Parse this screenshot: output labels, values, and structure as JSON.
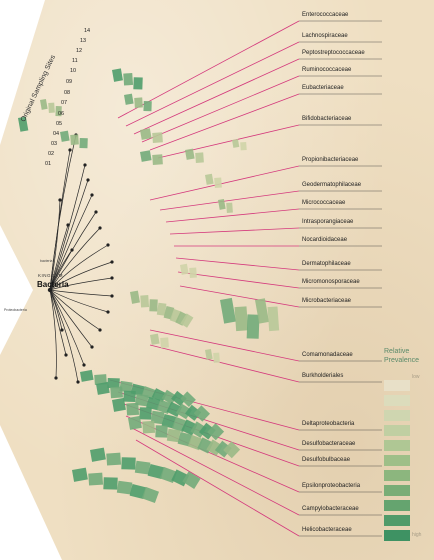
{
  "diagram": {
    "kingdom_label": "KINGDOM",
    "kingdom_name": "Bacteria",
    "sampling_axis_title": "Original Sampling Sites",
    "sampling_sites": [
      "14",
      "13",
      "12",
      "11",
      "10",
      "09",
      "08",
      "07",
      "06",
      "05",
      "04",
      "03",
      "02",
      "01"
    ],
    "families": [
      "Enterococcaceae",
      "Lachnospiraceae",
      "Peptostreptococcaceae",
      "Ruminococcaceae",
      "Eubacteriaceae",
      "Bifidobacteriaceae",
      "Propionibacteriaceae",
      "Geodermatophilaceae",
      "Micrococcaceae",
      "Intrasporangiaceae",
      "Nocardioidaceae",
      "Dermatophilaceae",
      "Micromonosporaceae",
      "Microbacteriaceae",
      "Comamonadaceae",
      "Burkholderiales",
      "Deltaproteobacteria",
      "Desulfobacteraceae",
      "Desulfobulbaceae",
      "Epsilonproteobacteria",
      "Campylobacteraceae",
      "Helicobacteraceae"
    ],
    "tiny_branch_labels": [
      "Proteobacteria",
      "bacteria"
    ],
    "legend": {
      "title_line1": "Relative",
      "title_line2": "Prevalence",
      "low_label": "low",
      "high_label": "high",
      "colors": [
        "#e8e0c8",
        "#dcdcbc",
        "#cfd6b0",
        "#c0cfa2",
        "#afc794",
        "#9ebf88",
        "#8cb67e",
        "#79ad76",
        "#65a46f",
        "#509b69",
        "#3e9263"
      ]
    },
    "colors": {
      "connector_line": "#d4397c",
      "tree_line": "#2a2a2a",
      "tree_node": "#222222",
      "cell_low": "#cfd4a8",
      "cell_mid": "#9ab986",
      "cell_high": "#4f9d6c"
    }
  }
}
